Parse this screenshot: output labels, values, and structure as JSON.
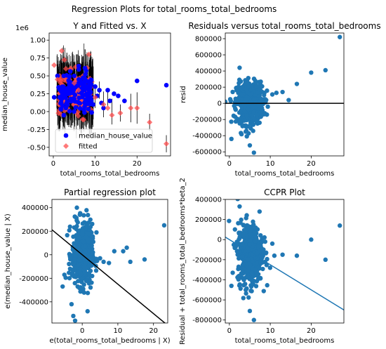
{
  "suptitle": "Regression Plots for total_rooms_total_bedrooms",
  "chart_data": [
    {
      "type": "scatter",
      "title": "Y and Fitted vs. X",
      "xlabel": "total_rooms_total_bedrooms",
      "ylabel": "median_house_value",
      "offset_text": "1e6",
      "xlim": [
        -1,
        28
      ],
      "ylim": [
        -0.62,
        1.1
      ],
      "xticks": [
        0,
        10,
        20
      ],
      "xtick_labels": [
        "0",
        "10",
        "20"
      ],
      "yticks": [
        -0.5,
        -0.25,
        0.0,
        0.25,
        0.5,
        0.75,
        1.0
      ],
      "ytick_labels": [
        "-0.50",
        "-0.25",
        "0.00",
        "0.25",
        "0.50",
        "0.75",
        "1.00"
      ],
      "legend": {
        "placement": "lower-left",
        "entries": [
          "median_house_value",
          "fitted"
        ]
      },
      "colors": {
        "observed": "#0000ff",
        "fitted": "#ff4c4c",
        "error_bars": "#000000"
      },
      "series": [
        {
          "name": "median_house_value",
          "marker": "circle",
          "x": [
            0.2,
            1.0,
            1.5,
            2.5,
            2.5,
            3.0,
            5.0,
            8.5,
            9.0,
            9.5,
            10.0,
            10.5,
            11.0,
            11.5,
            12.0,
            13.0,
            13.5,
            14.5,
            15.5,
            17.0,
            20.0,
            27.0
          ],
          "y": [
            0.2,
            0.5,
            0.2,
            0.5,
            -0.05,
            0.05,
            0.5,
            0.15,
            0.2,
            0.1,
            0.35,
            0.22,
            0.3,
            0.12,
            0.05,
            0.3,
            0.15,
            0.25,
            0.22,
            0.15,
            0.43,
            0.37
          ]
        },
        {
          "name": "fitted",
          "marker": "diamond",
          "x": [
            0.2,
            1.0,
            2.0,
            3.0,
            5.0,
            6.0,
            8.5,
            10.0,
            12.0,
            13.0,
            14.0,
            16.0,
            18.5,
            20.0,
            23.0,
            27.0
          ],
          "y": [
            0.65,
            0.45,
            0.85,
            0.6,
            0.4,
            0.3,
            0.8,
            0.2,
            0.1,
            0.05,
            -0.05,
            -0.02,
            0.05,
            0.05,
            -0.15,
            -0.45
          ]
        }
      ]
    },
    {
      "type": "scatter",
      "title": "Residuals versus total_rooms_total_bedrooms",
      "xlabel": "total_rooms_total_bedrooms",
      "ylabel": "resid",
      "xlim": [
        -1,
        28
      ],
      "ylim": [
        -650000,
        870000
      ],
      "xticks": [
        0,
        10,
        20
      ],
      "xtick_labels": [
        "0",
        "10",
        "20"
      ],
      "yticks": [
        -600000,
        -400000,
        -200000,
        0,
        200000,
        400000,
        600000,
        800000
      ],
      "ytick_labels": [
        "-600000",
        "-400000",
        "-200000",
        "0",
        "200000",
        "400000",
        "600000",
        "800000"
      ],
      "hline": 0,
      "colors": {
        "points": "#1f77b4",
        "line": "#000000"
      },
      "outliers": {
        "x": [
          0.5,
          8.0,
          9.0,
          10.5,
          11.5,
          13.0,
          14.5,
          16.5,
          20.0,
          23.5,
          27.0,
          5.0,
          6.0,
          4.0,
          2.5
        ],
        "y": [
          -440000,
          210000,
          40000,
          110000,
          130000,
          140000,
          40000,
          240000,
          380000,
          410000,
          820000,
          -520000,
          -610000,
          -350000,
          440000
        ]
      }
    },
    {
      "type": "scatter",
      "title": "Partial regression plot",
      "xlabel": "e(total_rooms_total_bedrooms | X)",
      "ylabel": "e(median_house_value | X)",
      "xlim": [
        -8.5,
        24
      ],
      "ylim": [
        -580000,
        470000
      ],
      "xticks": [
        0,
        10,
        20
      ],
      "xtick_labels": [
        "0",
        "10",
        "20"
      ],
      "yticks": [
        -400000,
        -200000,
        0,
        200000,
        400000
      ],
      "ytick_labels": [
        "-400000",
        "-200000",
        "0",
        "200000",
        "400000"
      ],
      "fit_line": {
        "slope": -25000,
        "intercept": 0
      },
      "colors": {
        "points": "#1f77b4",
        "line": "#000000"
      },
      "outliers": {
        "x": [
          -5.5,
          -5.0,
          -3.0,
          -2.5,
          3.0,
          4.0,
          5.0,
          6.0,
          7.5,
          9.0,
          11.5,
          12.5,
          13.5,
          17.5,
          23.0,
          -2.0,
          -1.5,
          1.5
        ],
        "y": [
          -270000,
          -170000,
          -420000,
          -520000,
          20000,
          190000,
          -30000,
          -60000,
          -70000,
          30000,
          30000,
          60000,
          -60000,
          -40000,
          250000,
          -560000,
          400000,
          -480000
        ]
      }
    },
    {
      "type": "scatter",
      "title": "CCPR Plot",
      "xlabel": "total_rooms_total_bedrooms",
      "ylabel": "Residual + total_rooms_total_bedrooms*beta_2",
      "xlim": [
        -1,
        28
      ],
      "ylim": [
        -830000,
        400000
      ],
      "xticks": [
        0,
        10,
        20
      ],
      "xtick_labels": [
        "0",
        "10",
        "20"
      ],
      "yticks": [
        -800000,
        -600000,
        -400000,
        -200000,
        0,
        200000,
        400000
      ],
      "ytick_labels": [
        "-800000",
        "-600000",
        "-400000",
        "-200000",
        "0",
        "200000",
        "400000"
      ],
      "fit_line": {
        "slope": -25000,
        "intercept": 0
      },
      "colors": {
        "points": "#1f77b4",
        "line": "#1f77b4"
      },
      "outliers": {
        "x": [
          0.5,
          8.0,
          9.0,
          11.0,
          13.0,
          16.5,
          20.0,
          23.5,
          27.0,
          5.0,
          6.0,
          4.0,
          2.5,
          10.5
        ],
        "y": [
          -460000,
          10000,
          -130000,
          -160000,
          -150000,
          -160000,
          0,
          -200000,
          140000,
          -710000,
          -800000,
          -500000,
          330000,
          -40000
        ]
      }
    }
  ]
}
